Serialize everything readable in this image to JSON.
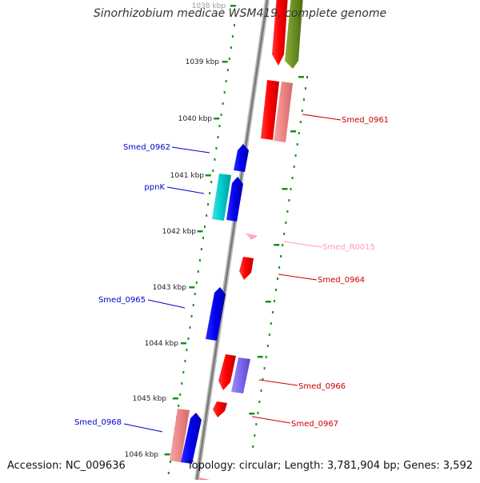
{
  "title": "Sinorhizobium medicae WSM419, complete genome",
  "accession": "Accession: NC_009636",
  "summary": "Topology: circular; Length: 3,781,904 bp; Genes: 3,592",
  "colors": {
    "backbone": "#8c8c8c",
    "dots": "#1a8f1a",
    "ticks": "#1a8f1a",
    "forward_cds": "#ff0000",
    "forward_pseudo": "#f08a8a",
    "forward_rna": "#ff9ad0",
    "forward_other": "#6b8e23",
    "reverse_cds": "#0000ee",
    "reverse_alt": "#00cccc",
    "reverse_other": "#7b68ee"
  },
  "scale_labels": [
    "1038 kbp",
    "1039 kbp",
    "1040 kbp",
    "1041 kbp",
    "1042 kbp",
    "1043 kbp",
    "1044 kbp",
    "1045 kbp",
    "1046 kbp"
  ],
  "gene_labels": [
    {
      "text": "Smed_0961",
      "color": "#cc0000"
    },
    {
      "text": "Smed_0962",
      "color": "#0000cc"
    },
    {
      "text": "ppnK",
      "color": "#0000cc"
    },
    {
      "text": "Smed_R0015",
      "color": "#ff99cc"
    },
    {
      "text": "Smed_0964",
      "color": "#cc0000"
    },
    {
      "text": "Smed_0965",
      "color": "#0000cc"
    },
    {
      "text": "Smed_0966",
      "color": "#cc0000"
    },
    {
      "text": "Smed_0967",
      "color": "#cc0000"
    },
    {
      "text": "Smed_0968",
      "color": "#0000cc"
    }
  ]
}
